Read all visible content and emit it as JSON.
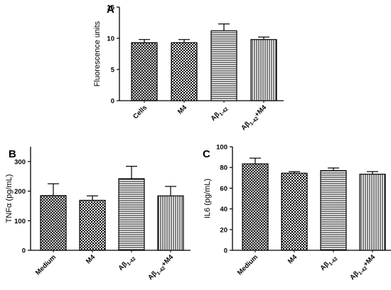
{
  "chart_data": [
    {
      "type": "bar",
      "panel": "A",
      "ylabel": "Fluorescence units",
      "ylim": [
        0,
        15
      ],
      "yticks": [
        0,
        5,
        10,
        15
      ],
      "categories": [
        "Cells",
        "M4",
        "Aβ1-42",
        "Aβ1-42+M4"
      ],
      "category_labels": [
        {
          "base": "Cells",
          "sub": "",
          "tail": ""
        },
        {
          "base": "M4",
          "sub": "",
          "tail": ""
        },
        {
          "base": "Aβ",
          "sub": "1-42",
          "tail": ""
        },
        {
          "base": "Aβ",
          "sub": "1-42",
          "tail": "+M4"
        }
      ],
      "values": [
        9.3,
        9.3,
        11.2,
        9.8
      ],
      "errors": [
        0.5,
        0.5,
        1.1,
        0.4
      ],
      "patterns": [
        "crosshatch",
        "checker",
        "hlines",
        "vlines"
      ]
    },
    {
      "type": "bar",
      "panel": "B",
      "ylabel": "TNFα (pg/mL)",
      "ylim": [
        0,
        350
      ],
      "yticks": [
        0,
        100,
        200,
        300
      ],
      "categories": [
        "Medium",
        "M4",
        "Aβ1-42",
        "Aβ1-42+M4"
      ],
      "category_labels": [
        {
          "base": "Medium",
          "sub": "",
          "tail": ""
        },
        {
          "base": "M4",
          "sub": "",
          "tail": ""
        },
        {
          "base": "Aβ",
          "sub": "1-42",
          "tail": ""
        },
        {
          "base": "Aβ",
          "sub": "1-42",
          "tail": "+M4"
        }
      ],
      "values": [
        185,
        169,
        242,
        184
      ],
      "errors": [
        40,
        15,
        42,
        32
      ],
      "patterns": [
        "crosshatch",
        "checker",
        "hlines",
        "vlines"
      ]
    },
    {
      "type": "bar",
      "panel": "C",
      "ylabel": "IL6 (pg/mL)",
      "ylim": [
        0,
        100
      ],
      "yticks": [
        0,
        20,
        40,
        60,
        80,
        100
      ],
      "categories": [
        "Medium",
        "M4",
        "Aβ1-42",
        "Aβ1-42+M4"
      ],
      "category_labels": [
        {
          "base": "Medium",
          "sub": "",
          "tail": ""
        },
        {
          "base": "M4",
          "sub": "",
          "tail": ""
        },
        {
          "base": "Aβ",
          "sub": "1-42",
          "tail": ""
        },
        {
          "base": "Aβ",
          "sub": "1-42",
          "tail": "+M4"
        }
      ],
      "values": [
        83.5,
        74.5,
        77,
        73.5
      ],
      "errors": [
        5.5,
        1.5,
        2.5,
        2.5
      ],
      "patterns": [
        "crosshatch",
        "checker",
        "hlines",
        "vlines"
      ]
    }
  ]
}
